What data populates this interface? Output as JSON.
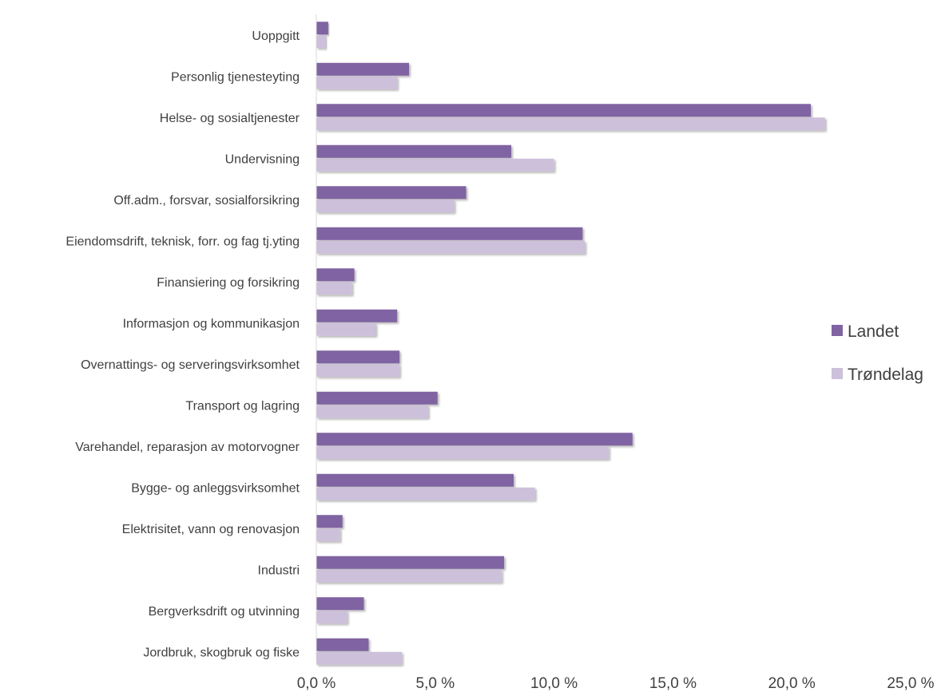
{
  "chart_data": {
    "type": "bar",
    "orientation": "horizontal",
    "categories": [
      "Uoppgitt",
      "Personlig tjenesteyting",
      "Helse- og sosialtjenester",
      "Undervisning",
      "Off.adm., forsvar, sosialforsikring",
      "Eiendomsdrift, teknisk, forr. og fag tj.yting",
      "Finansiering og forsikring",
      "Informasjon og kommunikasjon",
      "Overnattings- og serveringsvirksomhet",
      "Transport og lagring",
      "Varehandel, reparasjon av motorvogner",
      "Bygge- og anleggsvirksomhet",
      "Elektrisitet, vann og renovasjon",
      "Industri",
      "Bergverksdrift og utvinning",
      "Jordbruk, skogbruk og fiske"
    ],
    "series": [
      {
        "name": "Landet",
        "color": "#8064a2",
        "values": [
          0.5,
          3.9,
          20.8,
          8.2,
          6.3,
          11.2,
          1.6,
          3.4,
          3.5,
          5.1,
          13.3,
          8.3,
          1.1,
          7.9,
          2.0,
          2.2
        ]
      },
      {
        "name": "Trøndelag",
        "color": "#ccc0da",
        "values": [
          0.4,
          3.4,
          21.4,
          10.0,
          5.8,
          11.3,
          1.5,
          2.5,
          3.5,
          4.7,
          12.3,
          9.2,
          1.0,
          7.8,
          1.3,
          3.6
        ]
      }
    ],
    "xlim": [
      0,
      25
    ],
    "xticks": [
      0,
      5,
      10,
      15,
      20,
      25
    ],
    "xtick_labels": [
      "0,0 %",
      "5,0 %",
      "10,0 %",
      "15,0 %",
      "20,0 %",
      "25,0 %"
    ],
    "title": "",
    "xlabel": "",
    "ylabel": "",
    "grid": false,
    "legend_position": "right"
  }
}
